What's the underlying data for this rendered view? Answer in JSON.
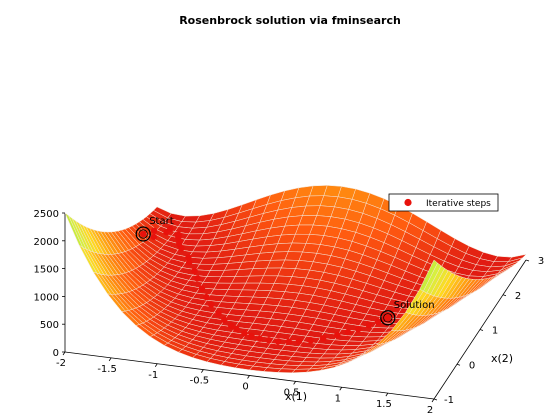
{
  "chart_data": {
    "type": "surface",
    "title": "Rosenbrock solution via fminsearch",
    "xlabel": "x(1)",
    "ylabel": "x(2)",
    "xlim": [
      -2,
      2
    ],
    "ylim": [
      -1,
      3
    ],
    "zlim": [
      0,
      2500
    ],
    "x_ticks": [
      "-2",
      "-1.5",
      "-1",
      "-0.5",
      "0",
      "0.5",
      "1",
      "1.5",
      "2"
    ],
    "y_ticks": [
      "-1",
      "0",
      "1",
      "2",
      "3"
    ],
    "z_ticks": [
      "0",
      "500",
      "1000",
      "1500",
      "2000",
      "2500"
    ],
    "surface_function": "100*(x2 - x1^2)^2 + (1 - x1)^2",
    "colormap": [
      "#e01a12",
      "#ff5a10",
      "#ff9a10",
      "#ffd820",
      "#d8f040",
      "#a8e830"
    ],
    "series": [
      {
        "name": "Iterative steps",
        "color": "#e8120c",
        "points": [
          [
            -1.9,
            2.0
          ],
          [
            -1.82,
            2.14
          ],
          [
            -1.86,
            2.31
          ],
          [
            -1.76,
            2.45
          ],
          [
            -1.75,
            2.57
          ],
          [
            -1.64,
            2.48
          ],
          [
            -1.63,
            2.46
          ],
          [
            -1.62,
            2.4
          ],
          [
            -1.58,
            2.3
          ],
          [
            -1.57,
            2.24
          ],
          [
            -1.52,
            2.13
          ],
          [
            -1.39,
            1.92
          ],
          [
            -1.35,
            1.79
          ],
          [
            -1.24,
            1.58
          ],
          [
            -1.16,
            1.39
          ],
          [
            -1.05,
            1.14
          ],
          [
            -0.95,
            0.93
          ],
          [
            -0.85,
            0.75
          ],
          [
            -0.72,
            0.54
          ],
          [
            -0.62,
            0.39
          ],
          [
            -0.51,
            0.25
          ],
          [
            -0.44,
            0.19
          ],
          [
            -0.33,
            0.1
          ],
          [
            -0.24,
            0.05
          ],
          [
            -0.14,
            0.01
          ],
          [
            -0.04,
            0.0
          ],
          [
            0.06,
            0.0
          ],
          [
            0.17,
            0.03
          ],
          [
            0.27,
            0.07
          ],
          [
            0.38,
            0.14
          ],
          [
            0.49,
            0.24
          ],
          [
            0.61,
            0.37
          ],
          [
            0.7,
            0.48
          ],
          [
            0.78,
            0.6
          ],
          [
            0.86,
            0.74
          ],
          [
            0.93,
            0.86
          ],
          [
            0.97,
            0.94
          ],
          [
            1.0,
            1.0
          ]
        ]
      }
    ],
    "annotations": [
      {
        "text": "Start",
        "x": -1.9,
        "y": 2.0
      },
      {
        "text": "Solution",
        "x": 1.0,
        "y": 1.0
      }
    ],
    "legend": {
      "entries": [
        "Iterative steps"
      ],
      "position": "right"
    },
    "grid": false
  }
}
